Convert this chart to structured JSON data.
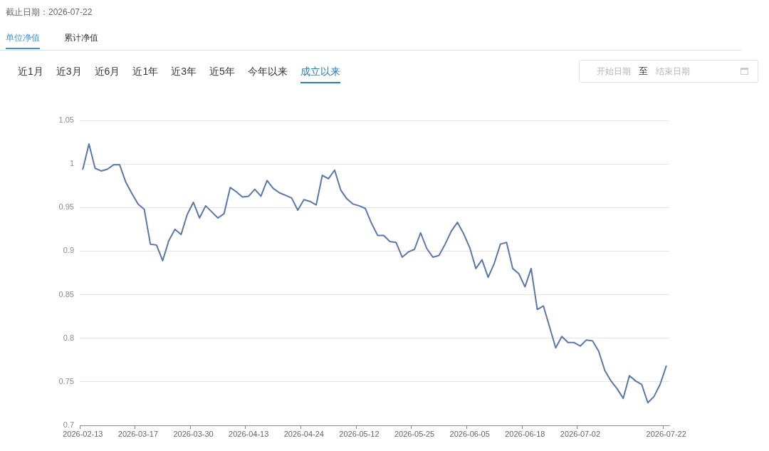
{
  "chart_data": {
    "type": "line",
    "annotations": [
      "截止日期：2026-07-22",
      "单位净值",
      "累计净值",
      "近1月",
      "近3月",
      "近6月",
      "近1年",
      "近3年",
      "近5年",
      "今年以来",
      "成立以来",
      "开始日期",
      "至",
      "结束日期"
    ],
    "categories": [
      "2026-02-13",
      null,
      null,
      null,
      null,
      null,
      null,
      null,
      null,
      "2026-03-17",
      null,
      null,
      null,
      null,
      null,
      null,
      null,
      null,
      "2026-03-30",
      null,
      null,
      null,
      null,
      null,
      null,
      null,
      null,
      "2026-04-13",
      null,
      null,
      null,
      null,
      null,
      null,
      null,
      null,
      "2026-04-24",
      null,
      null,
      null,
      null,
      null,
      null,
      null,
      null,
      "2026-05-12",
      null,
      null,
      null,
      null,
      null,
      null,
      null,
      null,
      "2026-05-25",
      null,
      null,
      null,
      null,
      null,
      null,
      null,
      null,
      "2026-06-05",
      null,
      null,
      null,
      null,
      null,
      null,
      null,
      null,
      "2026-06-18",
      null,
      null,
      null,
      null,
      null,
      null,
      null,
      null,
      "2026-07-02",
      null,
      null,
      null,
      null,
      null,
      null,
      null,
      null,
      null,
      null,
      null,
      null,
      null,
      "2026-07-22"
    ],
    "values": [
      0.994,
      1.023,
      0.995,
      0.992,
      0.994,
      0.999,
      0.999,
      0.979,
      0.966,
      0.954,
      0.948,
      0.908,
      0.907,
      0.889,
      0.912,
      0.925,
      0.919,
      0.942,
      0.956,
      0.938,
      0.952,
      0.945,
      0.938,
      0.943,
      0.973,
      0.968,
      0.962,
      0.963,
      0.971,
      0.963,
      0.981,
      0.972,
      0.967,
      0.964,
      0.961,
      0.947,
      0.959,
      0.957,
      0.953,
      0.987,
      0.983,
      0.993,
      0.97,
      0.96,
      0.954,
      0.952,
      0.949,
      0.932,
      0.918,
      0.918,
      0.911,
      0.91,
      0.893,
      0.899,
      0.902,
      0.921,
      0.903,
      0.893,
      0.895,
      0.908,
      0.923,
      0.933,
      0.92,
      0.904,
      0.88,
      0.89,
      0.87,
      0.886,
      0.908,
      0.91,
      0.88,
      0.874,
      0.859,
      0.88,
      0.833,
      0.837,
      0.813,
      0.789,
      0.802,
      0.795,
      0.795,
      0.791,
      0.798,
      0.797,
      0.785,
      0.763,
      0.751,
      0.742,
      0.731,
      0.757,
      0.751,
      0.747,
      0.726,
      0.733,
      0.747,
      0.768
    ],
    "color": "#5a77ab",
    "ylim": [
      0.7,
      1.05
    ],
    "yticks": [
      0.7,
      0.75,
      0.8,
      0.85,
      0.9,
      0.95,
      1,
      1.05
    ],
    "grid": "y",
    "legend": false,
    "marker": "none",
    "line_style": "solid"
  }
}
